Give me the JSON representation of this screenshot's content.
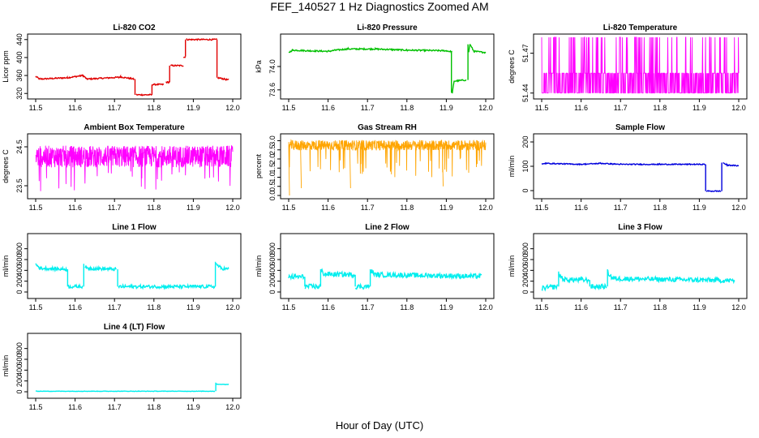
{
  "page": {
    "title": "FEF_140527  1 Hz Diagnostics Zoomed AM",
    "xlabel": "Hour of Day (UTC)"
  },
  "chart_data": [
    {
      "type": "line",
      "id": "co2",
      "title": "Li-820 CO2",
      "ylabel": "Licor ppm",
      "color": "#e00000",
      "xlim": [
        11.5,
        12.0
      ],
      "ylim": [
        315,
        445
      ],
      "yticks": [
        320,
        360,
        400,
        440
      ],
      "yticklabels": [
        "320",
        "360",
        "400",
        "440"
      ],
      "noise": 1.5,
      "segments": [
        [
          [
            11.5,
            358
          ],
          [
            11.51,
            352
          ],
          [
            11.58,
            355
          ],
          [
            11.62,
            360
          ],
          [
            11.63,
            352
          ],
          [
            11.71,
            356
          ],
          [
            11.715,
            357
          ],
          [
            11.75,
            352
          ]
        ],
        [
          [
            11.755,
            317
          ],
          [
            11.795,
            317
          ]
        ],
        [
          [
            11.795,
            340
          ],
          [
            11.825,
            340
          ]
        ],
        [
          [
            11.83,
            345
          ],
          [
            11.84,
            345
          ]
        ],
        [
          [
            11.842,
            382
          ],
          [
            11.875,
            382
          ]
        ],
        [
          [
            11.875,
            400
          ],
          [
            11.88,
            402
          ]
        ],
        [
          [
            11.882,
            440
          ],
          [
            11.96,
            440
          ]
        ],
        [
          [
            11.962,
            355
          ],
          [
            11.99,
            350
          ]
        ]
      ],
      "verticals": [
        [
          11.752,
          352,
          317
        ],
        [
          11.795,
          317,
          340
        ],
        [
          11.84,
          345,
          382
        ],
        [
          11.88,
          402,
          440
        ],
        [
          11.96,
          440,
          355
        ]
      ]
    },
    {
      "type": "line",
      "id": "pressure",
      "title": "Li-820 Pressure",
      "ylabel": "kPa",
      "color": "#00c000",
      "xlim": [
        11.5,
        12.0
      ],
      "ylim": [
        73.5,
        74.5
      ],
      "yticks": [
        73.6,
        74.0
      ],
      "yticklabels": [
        "73.6",
        "74.0"
      ],
      "noise": 0.012,
      "segments": [
        [
          [
            11.5,
            74.24
          ],
          [
            11.51,
            74.28
          ],
          [
            11.55,
            74.27
          ],
          [
            11.6,
            74.26
          ],
          [
            11.62,
            74.28
          ],
          [
            11.65,
            74.3
          ],
          [
            11.72,
            74.3
          ],
          [
            11.8,
            74.28
          ],
          [
            11.9,
            74.27
          ],
          [
            11.915,
            74.25
          ]
        ],
        [
          [
            11.915,
            73.55
          ],
          [
            11.92,
            73.75
          ],
          [
            11.95,
            73.77
          ]
        ],
        [
          [
            11.957,
            74.25
          ],
          [
            11.96,
            74.38
          ],
          [
            11.97,
            74.26
          ],
          [
            12.0,
            74.24
          ]
        ]
      ],
      "verticals": [
        [
          11.913,
          74.25,
          73.55
        ],
        [
          11.955,
          73.77,
          74.38
        ]
      ]
    },
    {
      "type": "noise",
      "id": "temp820",
      "title": "Li-820 Temperature",
      "ylabel": "degrees C",
      "color": "#ff00ff",
      "xlim": [
        11.5,
        12.0
      ],
      "ylim": [
        51.438,
        51.482
      ],
      "yticks": [
        51.44,
        51.47
      ],
      "yticklabels": [
        "51.44",
        "51.47"
      ],
      "levels": [
        51.44,
        51.455,
        51.482
      ],
      "spike_rate": 0.12
    },
    {
      "type": "noise_band",
      "id": "ambient",
      "title": "Ambient Box Temperature",
      "ylabel": "degrees C",
      "color": "#ff00ff",
      "xlim": [
        11.5,
        12.0
      ],
      "ylim": [
        23.25,
        24.75
      ],
      "yticks": [
        23.5,
        24.5
      ],
      "yticklabels": [
        "23.5",
        "24.5"
      ],
      "center": 24.25,
      "spread": 0.28,
      "dip_to": 23.35,
      "dip_rate": 0.05
    },
    {
      "type": "noise_band",
      "id": "rh",
      "title": "Gas Stream RH",
      "ylabel": "percent",
      "color": "#ffa500",
      "xlim": [
        11.5,
        12.0
      ],
      "ylim": [
        0,
        3.2
      ],
      "yticks": [
        0.0,
        0.5,
        1.0,
        1.5,
        2.0,
        2.5,
        3.0
      ],
      "yticklabels": [
        "0.0",
        "0.5",
        "1.0",
        "1.5",
        "2.0",
        "2.5",
        "3.0"
      ],
      "center": 2.75,
      "spread": 0.28,
      "dip_to": 1.0,
      "dip_rate": 0.04,
      "deep_dips": [
        [
          11.5,
          0.0
        ],
        [
          11.53,
          0.4
        ],
        [
          11.655,
          0.4
        ],
        [
          11.89,
          0.5
        ]
      ]
    },
    {
      "type": "line",
      "id": "sample",
      "title": "Sample Flow",
      "ylabel": "ml/min",
      "color": "#0000dd",
      "xlim": [
        11.5,
        12.0
      ],
      "ylim": [
        -20,
        220
      ],
      "yticks": [
        0,
        100,
        200
      ],
      "yticklabels": [
        "0",
        "100",
        "200"
      ],
      "noise": 2,
      "segments": [
        [
          [
            11.5,
            108
          ],
          [
            11.51,
            112
          ],
          [
            11.6,
            108
          ],
          [
            11.65,
            112
          ],
          [
            11.7,
            108
          ],
          [
            11.8,
            108
          ],
          [
            11.9,
            108
          ],
          [
            11.915,
            108
          ]
        ],
        [
          [
            11.918,
            -2
          ],
          [
            11.955,
            -2
          ]
        ],
        [
          [
            11.96,
            115
          ],
          [
            11.97,
            105
          ],
          [
            12.0,
            102
          ]
        ]
      ],
      "verticals": [
        [
          11.916,
          108,
          -2
        ],
        [
          11.957,
          -2,
          115
        ]
      ]
    },
    {
      "type": "line",
      "id": "line1",
      "title": "Line 1 Flow",
      "ylabel": "ml/min",
      "color": "#00eeee",
      "xlim": [
        11.5,
        12.0
      ],
      "ylim": [
        -60,
        1020
      ],
      "yticks": [
        0,
        200,
        400,
        600,
        800
      ],
      "yticklabels": [
        "0",
        "200",
        "400",
        "600",
        "800"
      ],
      "noise": 30,
      "segments": [
        [
          [
            11.5,
            520
          ],
          [
            11.51,
            440
          ],
          [
            11.58,
            420
          ]
        ],
        [
          [
            11.582,
            100
          ],
          [
            11.62,
            100
          ]
        ],
        [
          [
            11.625,
            480
          ],
          [
            11.63,
            440
          ],
          [
            11.705,
            420
          ]
        ],
        [
          [
            11.71,
            100
          ],
          [
            11.955,
            100
          ]
        ],
        [
          [
            11.958,
            520
          ],
          [
            11.97,
            440
          ],
          [
            11.99,
            420
          ]
        ]
      ],
      "verticals": [
        [
          11.581,
          420,
          100
        ],
        [
          11.622,
          100,
          520
        ],
        [
          11.708,
          420,
          100
        ],
        [
          11.956,
          100,
          560
        ]
      ]
    },
    {
      "type": "line",
      "id": "line2",
      "title": "Line 2 Flow",
      "ylabel": "ml/min",
      "color": "#00eeee",
      "xlim": [
        11.5,
        12.0
      ],
      "ylim": [
        -60,
        1020
      ],
      "yticks": [
        0,
        200,
        400,
        600,
        800
      ],
      "yticklabels": [
        "0",
        "200",
        "400",
        "600",
        "800"
      ],
      "noise": 45,
      "segments": [
        [
          [
            11.5,
            280
          ],
          [
            11.54,
            280
          ]
        ],
        [
          [
            11.542,
            100
          ],
          [
            11.58,
            100
          ]
        ],
        [
          [
            11.582,
            400
          ],
          [
            11.59,
            330
          ],
          [
            11.668,
            320
          ]
        ],
        [
          [
            11.67,
            100
          ],
          [
            11.705,
            100
          ]
        ],
        [
          [
            11.708,
            400
          ],
          [
            11.72,
            320
          ],
          [
            11.99,
            290
          ]
        ]
      ],
      "verticals": [
        [
          11.541,
          280,
          100
        ],
        [
          11.581,
          100,
          420
        ],
        [
          11.669,
          320,
          100
        ],
        [
          11.707,
          100,
          420
        ]
      ]
    },
    {
      "type": "line",
      "id": "line3",
      "title": "Line 3 Flow",
      "ylabel": "ml/min",
      "color": "#00eeee",
      "xlim": [
        11.5,
        12.0
      ],
      "ylim": [
        -60,
        1020
      ],
      "yticks": [
        0,
        200,
        400,
        600,
        800
      ],
      "yticklabels": [
        "0",
        "200",
        "400",
        "600",
        "800"
      ],
      "noise": 45,
      "segments": [
        [
          [
            11.5,
            70
          ],
          [
            11.54,
            100
          ]
        ],
        [
          [
            11.545,
            320
          ],
          [
            11.555,
            230
          ],
          [
            11.62,
            220
          ]
        ],
        [
          [
            11.625,
            100
          ],
          [
            11.665,
            100
          ]
        ],
        [
          [
            11.668,
            360
          ],
          [
            11.68,
            250
          ],
          [
            11.99,
            210
          ]
        ]
      ],
      "verticals": [
        [
          11.543,
          100,
          380
        ],
        [
          11.622,
          220,
          100
        ],
        [
          11.667,
          100,
          420
        ]
      ]
    },
    {
      "type": "line",
      "id": "line4",
      "title": "Line 4 (LT) Flow",
      "ylabel": "ml/min",
      "color": "#00eeee",
      "xlim": [
        11.5,
        12.0
      ],
      "ylim": [
        -60,
        1020
      ],
      "yticks": [
        0,
        200,
        400,
        600,
        800
      ],
      "yticklabels": [
        "0",
        "200",
        "400",
        "600",
        "800"
      ],
      "noise": 4,
      "segments": [
        [
          [
            11.5,
            10
          ],
          [
            11.955,
            10
          ]
        ],
        [
          [
            11.958,
            140
          ],
          [
            11.99,
            135
          ]
        ]
      ],
      "verticals": [
        [
          11.957,
          10,
          170
        ]
      ]
    }
  ],
  "shared_x": {
    "ticks": [
      11.5,
      11.6,
      11.7,
      11.8,
      11.9,
      12.0
    ],
    "ticklabels": [
      "11.5",
      "11.6",
      "11.7",
      "11.8",
      "11.9",
      "12.0"
    ]
  }
}
